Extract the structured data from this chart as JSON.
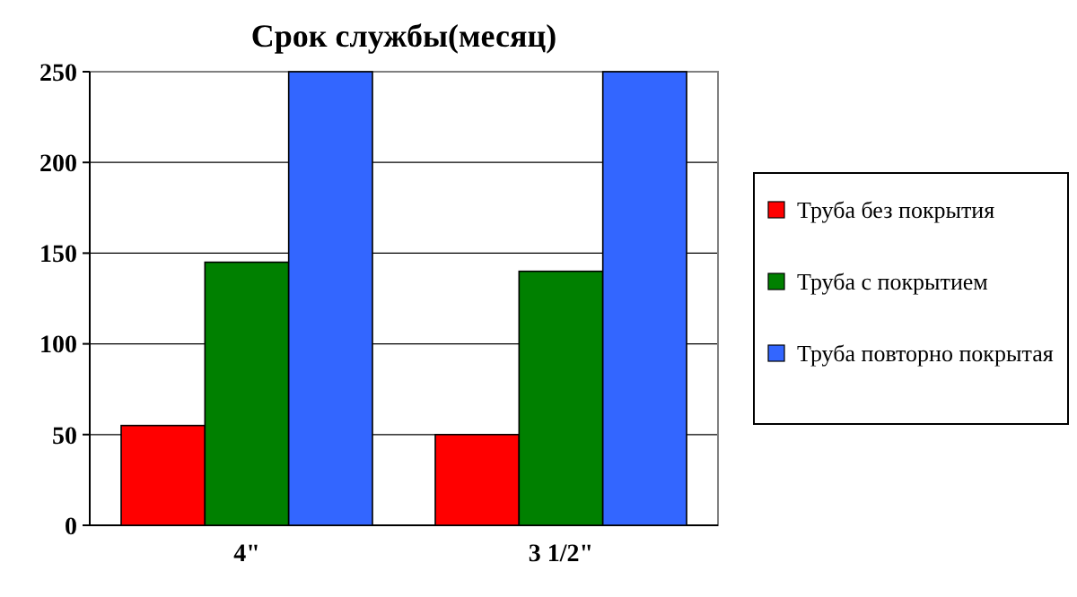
{
  "chart_data": {
    "type": "bar",
    "title": "Срок службы(месяц)",
    "categories": [
      "4\"",
      "3 1/2\""
    ],
    "series": [
      {
        "name": "Труба без покрытия",
        "color": "#ff0000",
        "values": [
          55,
          50
        ]
      },
      {
        "name": "Труба с покрытием",
        "color": "#008000",
        "values": [
          145,
          140
        ]
      },
      {
        "name": "Труба повторно покрытая",
        "color": "#3366ff",
        "values": [
          250,
          250
        ]
      }
    ],
    "ylim": [
      0,
      250
    ],
    "yticks": [
      0,
      50,
      100,
      150,
      200,
      250
    ],
    "grid": "y",
    "legend": "right"
  }
}
